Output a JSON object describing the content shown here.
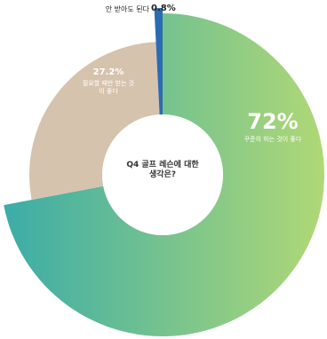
{
  "chart_data": {
    "type": "donut",
    "center_text": "Q4 골프 레슨에 대한 생각은?",
    "categories": [
      "꾸준히 하는 것이 좋다",
      "필요할 때만 받는 것이 좋다",
      "안 받아도 된다"
    ],
    "values": [
      72,
      27.2,
      0.8
    ],
    "value_labels": [
      "72%",
      "27.2%",
      "0.8%"
    ],
    "colors": [
      "#5cbf8c",
      "#d6c3ae",
      "#2b6cb0"
    ]
  }
}
